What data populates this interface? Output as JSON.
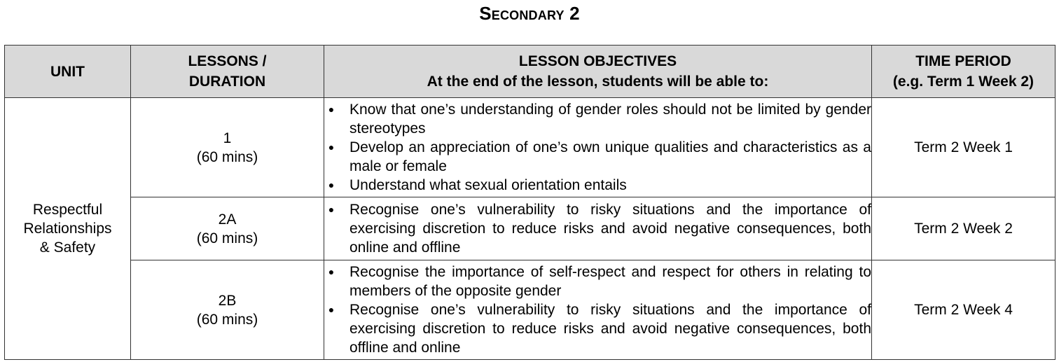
{
  "title": "Secondary 2",
  "table": {
    "headers": {
      "unit": "UNIT",
      "lessons_line1": "LESSONS /",
      "lessons_line2": "DURATION",
      "objectives_line1": "LESSON OBJECTIVES",
      "objectives_line2": "At the end of the lesson, students will be able to:",
      "period_line1": "TIME PERIOD",
      "period_line2": "(e.g. Term 1 Week 2)"
    },
    "unit": {
      "line1": "Respectful",
      "line2": "Relationships",
      "line3": "& Safety"
    },
    "rows": [
      {
        "lesson": "1",
        "duration": "(60 mins)",
        "objectives": [
          "Know that one’s understanding of gender roles should not be limited by gender stereotypes",
          "Develop an appreciation of one’s own unique qualities and characteristics as a male or female",
          "Understand what sexual orientation entails"
        ],
        "period": "Term 2 Week 1"
      },
      {
        "lesson": "2A",
        "duration": "(60 mins)",
        "objectives": [
          "Recognise one’s vulnerability to risky situations and the importance of exercising discretion to reduce risks and avoid negative consequences, both online and offline"
        ],
        "period": "Term 2 Week 2"
      },
      {
        "lesson": "2B",
        "duration": "(60 mins)",
        "objectives": [
          "Recognise the importance of self-respect and respect for others in relating to members of the opposite gender",
          "Recognise one’s vulnerability to risky situations and the importance of exercising discretion to reduce risks and avoid negative consequences, both offline and online"
        ],
        "period": "Term 2 Week 4"
      }
    ]
  }
}
